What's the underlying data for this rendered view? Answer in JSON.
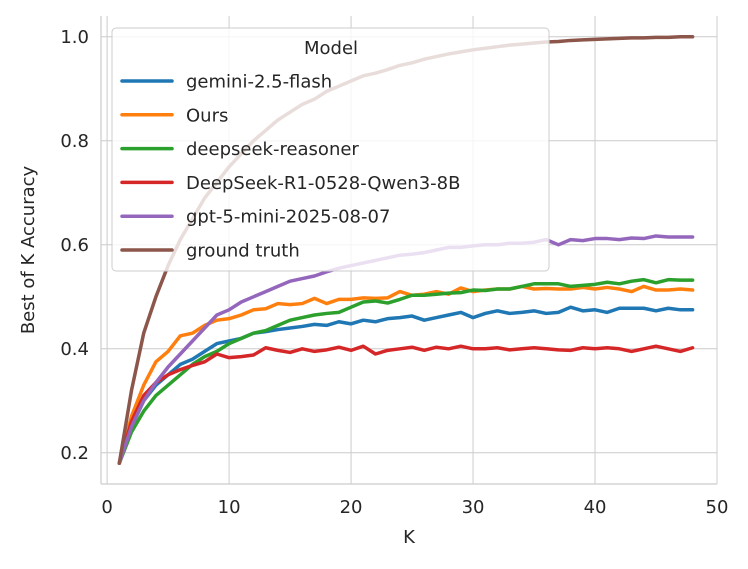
{
  "chart_data": {
    "type": "line",
    "title": "",
    "xlabel": "K",
    "ylabel": "Best of K Accuracy",
    "xlim": [
      -0.5,
      50
    ],
    "ylim": [
      0.14,
      1.04
    ],
    "xticks": [
      0,
      10,
      20,
      30,
      40,
      50
    ],
    "yticks": [
      0.2,
      0.4,
      0.6,
      0.8,
      1.0
    ],
    "xtick_labels": [
      "0",
      "10",
      "20",
      "30",
      "40",
      "50"
    ],
    "ytick_labels": [
      "0.2",
      "0.4",
      "0.6",
      "0.8",
      "1.0"
    ],
    "grid": true,
    "legend": {
      "title": "Model",
      "placement": "upper-left"
    },
    "x": [
      1,
      2,
      3,
      4,
      5,
      6,
      7,
      8,
      9,
      10,
      11,
      12,
      13,
      14,
      15,
      16,
      17,
      18,
      19,
      20,
      21,
      22,
      23,
      24,
      25,
      26,
      27,
      28,
      29,
      30,
      31,
      32,
      33,
      34,
      35,
      36,
      37,
      38,
      39,
      40,
      41,
      42,
      43,
      44,
      45,
      46,
      47,
      48
    ],
    "series": [
      {
        "name": "gemini-2.5-flash",
        "color": "#1f77b4",
        "values": [
          0.18,
          0.25,
          0.3,
          0.33,
          0.35,
          0.37,
          0.38,
          0.395,
          0.41,
          0.415,
          0.42,
          0.43,
          0.433,
          0.437,
          0.44,
          0.443,
          0.447,
          0.445,
          0.452,
          0.448,
          0.455,
          0.452,
          0.458,
          0.46,
          0.463,
          0.455,
          0.46,
          0.465,
          0.47,
          0.46,
          0.468,
          0.473,
          0.468,
          0.47,
          0.473,
          0.468,
          0.47,
          0.48,
          0.473,
          0.475,
          0.47,
          0.478,
          0.478,
          0.478,
          0.473,
          0.478,
          0.475,
          0.475
        ]
      },
      {
        "name": "Ours",
        "color": "#ff7f0e",
        "values": [
          0.18,
          0.27,
          0.33,
          0.375,
          0.395,
          0.425,
          0.43,
          0.445,
          0.455,
          0.458,
          0.465,
          0.475,
          0.477,
          0.487,
          0.485,
          0.487,
          0.497,
          0.487,
          0.495,
          0.495,
          0.498,
          0.497,
          0.498,
          0.51,
          0.503,
          0.505,
          0.51,
          0.505,
          0.517,
          0.51,
          0.513,
          0.515,
          0.515,
          0.52,
          0.515,
          0.516,
          0.515,
          0.515,
          0.518,
          0.515,
          0.518,
          0.515,
          0.51,
          0.52,
          0.513,
          0.513,
          0.515,
          0.513
        ]
      },
      {
        "name": "deepseek-reasoner",
        "color": "#2ca02c",
        "values": [
          0.18,
          0.24,
          0.28,
          0.31,
          0.33,
          0.35,
          0.37,
          0.385,
          0.395,
          0.41,
          0.42,
          0.43,
          0.435,
          0.445,
          0.455,
          0.46,
          0.465,
          0.468,
          0.47,
          0.48,
          0.49,
          0.492,
          0.488,
          0.495,
          0.503,
          0.503,
          0.505,
          0.507,
          0.508,
          0.513,
          0.512,
          0.515,
          0.515,
          0.52,
          0.525,
          0.525,
          0.525,
          0.52,
          0.522,
          0.524,
          0.528,
          0.525,
          0.53,
          0.533,
          0.527,
          0.533,
          0.532,
          0.532
        ]
      },
      {
        "name": "DeepSeek-R1-0528-Qwen3-8B",
        "color": "#d62728",
        "values": [
          0.18,
          0.26,
          0.31,
          0.335,
          0.35,
          0.36,
          0.368,
          0.375,
          0.39,
          0.383,
          0.385,
          0.388,
          0.402,
          0.397,
          0.393,
          0.4,
          0.395,
          0.398,
          0.403,
          0.397,
          0.405,
          0.39,
          0.397,
          0.4,
          0.403,
          0.397,
          0.403,
          0.4,
          0.405,
          0.4,
          0.4,
          0.402,
          0.398,
          0.4,
          0.402,
          0.4,
          0.398,
          0.397,
          0.402,
          0.4,
          0.402,
          0.4,
          0.395,
          0.4,
          0.405,
          0.4,
          0.395,
          0.402
        ]
      },
      {
        "name": "gpt-5-mini-2025-08-07",
        "color": "#9467bd",
        "values": [
          0.18,
          0.25,
          0.3,
          0.335,
          0.365,
          0.39,
          0.415,
          0.44,
          0.465,
          0.475,
          0.49,
          0.5,
          0.51,
          0.52,
          0.53,
          0.535,
          0.54,
          0.548,
          0.555,
          0.56,
          0.565,
          0.57,
          0.575,
          0.58,
          0.582,
          0.585,
          0.59,
          0.595,
          0.595,
          0.598,
          0.6,
          0.6,
          0.603,
          0.603,
          0.605,
          0.61,
          0.6,
          0.61,
          0.608,
          0.612,
          0.612,
          0.61,
          0.613,
          0.612,
          0.617,
          0.615,
          0.615,
          0.615
        ]
      },
      {
        "name": "ground truth",
        "color": "#8c564b",
        "values": [
          0.18,
          0.32,
          0.43,
          0.5,
          0.56,
          0.61,
          0.65,
          0.69,
          0.72,
          0.75,
          0.775,
          0.8,
          0.82,
          0.84,
          0.855,
          0.87,
          0.88,
          0.895,
          0.905,
          0.915,
          0.925,
          0.93,
          0.937,
          0.945,
          0.95,
          0.957,
          0.962,
          0.967,
          0.971,
          0.975,
          0.978,
          0.981,
          0.984,
          0.986,
          0.988,
          0.99,
          0.991,
          0.993,
          0.994,
          0.995,
          0.996,
          0.997,
          0.998,
          0.998,
          0.999,
          0.999,
          1.0,
          1.0
        ]
      }
    ]
  }
}
